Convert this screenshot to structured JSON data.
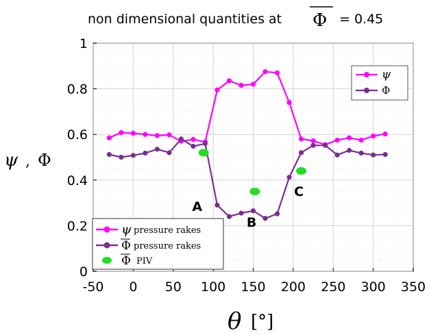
{
  "chart_data": {
    "type": "line",
    "title_prefix": "non dimensional quantities at",
    "title_symbol": "Φ",
    "title_value": "= 0.45",
    "xlabel_symbol": "θ",
    "xlabel_unit": "[°]",
    "ylabel_psi": "ψ",
    "ylabel_sep": ",",
    "ylabel_phi": "Φ",
    "xlim": [
      -50,
      350
    ],
    "ylim": [
      0,
      1
    ],
    "xticks": [
      -50,
      0,
      50,
      100,
      150,
      200,
      250,
      300,
      350
    ],
    "xtick_labels": [
      "-50",
      "0",
      "50",
      "100",
      "150",
      "200",
      "250",
      "300",
      "350"
    ],
    "yticks": [
      0,
      0.2,
      0.4,
      0.6,
      0.8,
      1
    ],
    "ytick_labels": [
      "0",
      "0.2",
      "0.4",
      "0.6",
      "0.8",
      "1"
    ],
    "grid": true,
    "series": [
      {
        "name": "ψ",
        "color": "#ff00ff",
        "x": [
          -30,
          -15,
          0,
          15,
          30,
          45,
          60,
          75,
          90,
          105,
          120,
          135,
          150,
          165,
          180,
          195,
          210,
          225,
          240,
          255,
          270,
          285,
          300,
          315
        ],
        "y": [
          0.585,
          0.608,
          0.605,
          0.6,
          0.595,
          0.598,
          0.57,
          0.578,
          0.567,
          0.795,
          0.835,
          0.815,
          0.82,
          0.875,
          0.87,
          0.74,
          0.58,
          0.572,
          0.555,
          0.575,
          0.585,
          0.575,
          0.593,
          0.602
        ]
      },
      {
        "name": "Φ",
        "color": "#7b2d8e",
        "x": [
          -30,
          -15,
          0,
          15,
          30,
          45,
          60,
          75,
          90,
          105,
          120,
          135,
          150,
          165,
          180,
          195,
          210,
          225,
          240,
          255,
          270,
          285,
          300,
          315
        ],
        "y": [
          0.512,
          0.5,
          0.508,
          0.518,
          0.535,
          0.52,
          0.58,
          0.548,
          0.56,
          0.29,
          0.24,
          0.255,
          0.265,
          0.232,
          0.252,
          0.412,
          0.52,
          0.552,
          0.552,
          0.51,
          0.53,
          0.518,
          0.51,
          0.512
        ]
      },
      {
        "name": "Φ PIV",
        "color": "#22dd22",
        "x": [
          88,
          152,
          210
        ],
        "y": [
          0.52,
          0.35,
          0.44
        ]
      }
    ],
    "legend_top_right": [
      {
        "label": "ψ",
        "color": "#ff00ff"
      },
      {
        "label": "Φ",
        "color": "#7b2d8e"
      }
    ],
    "legend_bottom_left": [
      {
        "symbol": "ψ",
        "label": "pressure rakes",
        "color": "#ff00ff",
        "marker": "line"
      },
      {
        "symbol": "Φ",
        "label": "pressure rakes",
        "color": "#7b2d8e",
        "marker": "line"
      },
      {
        "symbol": "Φ",
        "label": "PIV",
        "color": "#22dd22",
        "marker": "ellipse"
      }
    ],
    "annotations": [
      {
        "text": "A",
        "x": 80,
        "y": 0.265
      },
      {
        "text": "B",
        "x": 148,
        "y": 0.195
      },
      {
        "text": "C",
        "x": 207,
        "y": 0.33
      }
    ]
  }
}
